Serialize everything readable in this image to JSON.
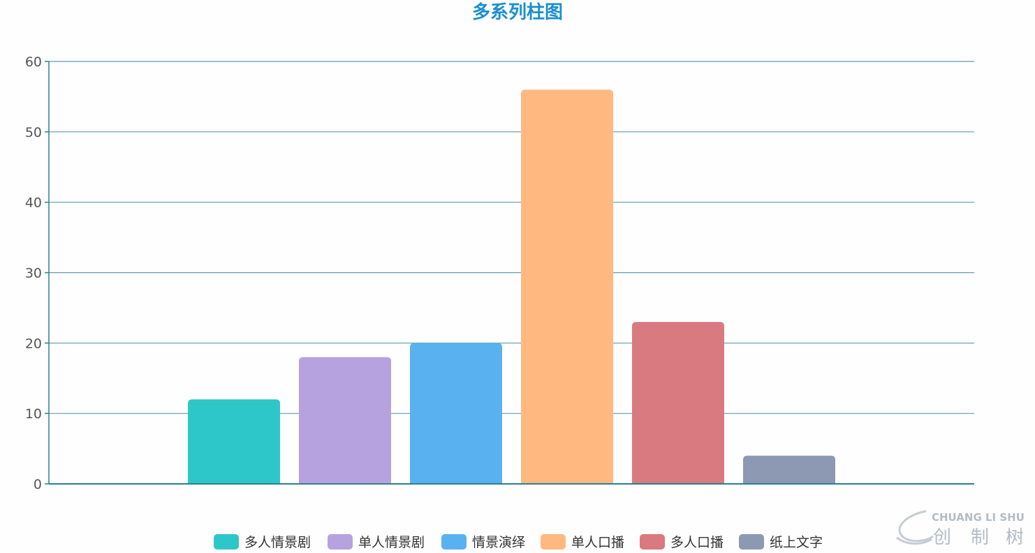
{
  "chart_data": {
    "type": "bar",
    "title": "多系列柱图",
    "ylim": [
      0,
      60
    ],
    "yticks": [
      0,
      10,
      20,
      30,
      40,
      50,
      60
    ],
    "grid": true,
    "legend_position": "bottom-center",
    "series": [
      {
        "name": "多人情景剧",
        "value": 12,
        "color": "#2ec7c9"
      },
      {
        "name": "单人情景剧",
        "value": 18,
        "color": "#b6a2de"
      },
      {
        "name": "情景演绎",
        "value": 20,
        "color": "#5ab1ef"
      },
      {
        "name": "单人口播",
        "value": 56,
        "color": "#ffb980"
      },
      {
        "name": "多人口播",
        "value": 23,
        "color": "#d87a80"
      },
      {
        "name": "纸上文字",
        "value": 4,
        "color": "#8d98b3"
      }
    ]
  },
  "watermark": {
    "pinyin": "CHUANG LI SHU",
    "chars": [
      "创",
      "制",
      "树"
    ]
  }
}
